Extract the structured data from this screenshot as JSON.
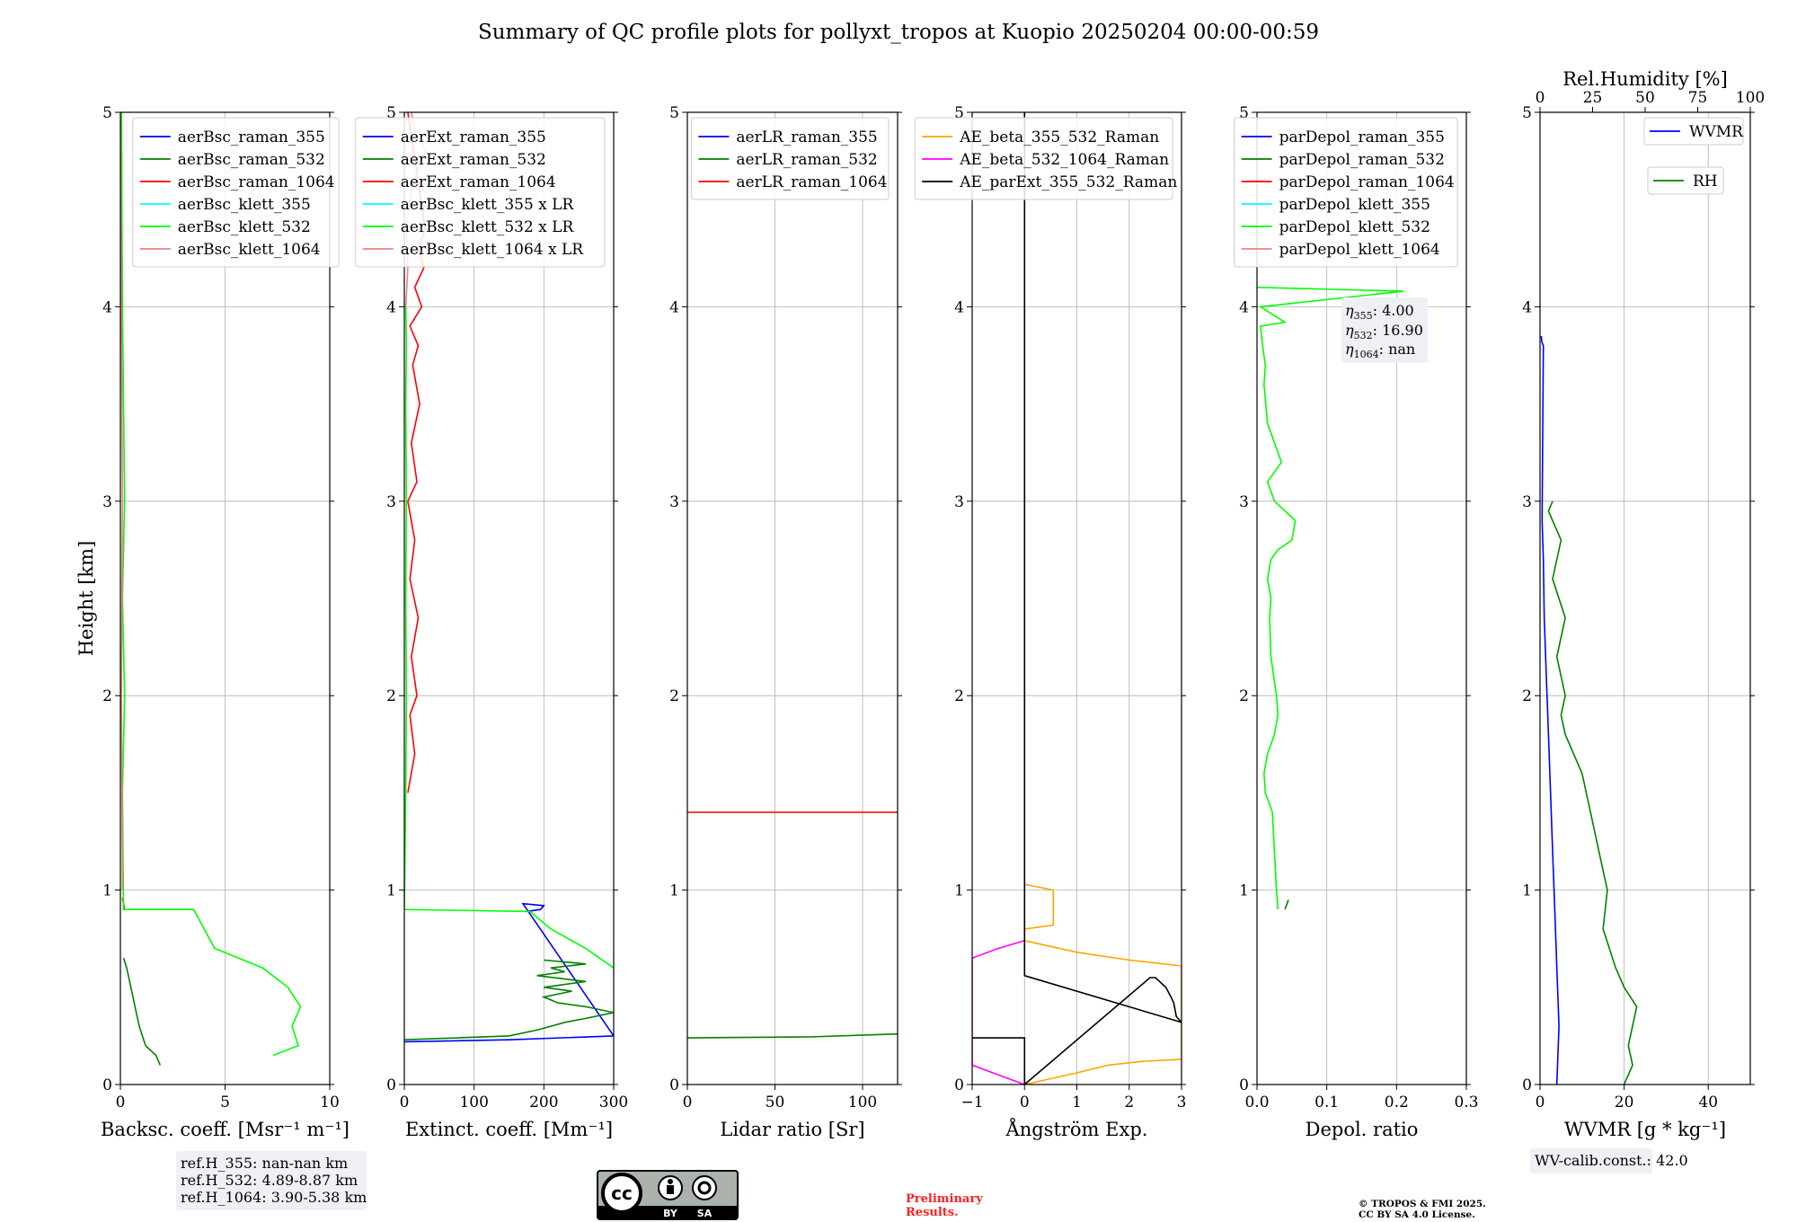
{
  "title": "Summary of QC profile plots for pollyxt_tropos at Kuopio 20250204 00:00-00:59",
  "chart_data": [
    {
      "id": "backscatter",
      "type": "line",
      "xlabel": "Backsc. coeff. [Msr⁻¹ m⁻¹]",
      "ylabel": "Height [km]",
      "xlim": [
        0,
        10
      ],
      "ylim": [
        0,
        5
      ],
      "xticks": [
        "0",
        "5",
        "10"
      ],
      "yticks": [
        "0",
        "1",
        "2",
        "3",
        "4",
        "5"
      ],
      "legend": "top-right",
      "series": [
        {
          "name": "aerBsc_raman_355",
          "color": "#0000ff",
          "x": [],
          "y": []
        },
        {
          "name": "aerBsc_raman_532",
          "color": "#008000",
          "x": [
            1.9,
            1.7,
            1.2,
            0.9,
            0.7,
            0.5,
            0.3,
            0.15
          ],
          "y": [
            0.1,
            0.15,
            0.2,
            0.3,
            0.4,
            0.5,
            0.6,
            0.65
          ]
        },
        {
          "name": "aerBsc_raman_1064",
          "color": "#ff0000",
          "x": [
            0.2,
            0.15,
            0.1
          ],
          "y": [
            0.9,
            0.93,
            0.96
          ]
        },
        {
          "name": "aerBsc_klett_355",
          "color": "#00ffff",
          "x": [],
          "y": []
        },
        {
          "name": "aerBsc_klett_532",
          "color": "#00ff00",
          "x": [
            7.3,
            8.5,
            8.2,
            8.6,
            8.0,
            6.8,
            4.5,
            3.5,
            0.15,
            0.1,
            0.2,
            0.1,
            0.2,
            0.15,
            0.1,
            0.05
          ],
          "y": [
            0.15,
            0.2,
            0.3,
            0.4,
            0.5,
            0.6,
            0.7,
            0.9,
            0.9,
            1.5,
            2.0,
            2.5,
            3.0,
            3.5,
            4.0,
            5.0
          ]
        },
        {
          "name": "aerBsc_klett_1064",
          "color": "#f08080",
          "x": [
            0.1,
            0.05,
            0.1,
            0.05,
            0.0
          ],
          "y": [
            1.0,
            2.0,
            3.0,
            4.0,
            5.0
          ]
        }
      ]
    },
    {
      "id": "extinction",
      "type": "line",
      "xlabel": "Extinct. coeff. [Mm⁻¹]",
      "xlim": [
        0,
        300
      ],
      "ylim": [
        0,
        5
      ],
      "xticks": [
        "0",
        "100",
        "200",
        "300"
      ],
      "yticks": [
        "0",
        "1",
        "2",
        "3",
        "4",
        "5"
      ],
      "legend": "top-right",
      "series": [
        {
          "name": "aerExt_raman_355",
          "color": "#0000ff",
          "x": [
            0,
            150,
            300,
            170,
            200,
            195,
            175
          ],
          "y": [
            0.22,
            0.23,
            0.25,
            0.93,
            0.92,
            0.9,
            0.89
          ]
        },
        {
          "name": "aerExt_raman_532",
          "color": "#008000",
          "x": [
            0,
            150,
            190,
            210,
            230,
            260,
            300,
            260,
            220,
            200,
            240,
            200,
            260,
            190,
            230,
            210,
            260,
            200
          ],
          "y": [
            0.23,
            0.25,
            0.28,
            0.3,
            0.32,
            0.34,
            0.37,
            0.4,
            0.42,
            0.45,
            0.48,
            0.5,
            0.53,
            0.56,
            0.58,
            0.6,
            0.62,
            0.64
          ]
        },
        {
          "name": "aerExt_raman_1064",
          "color": "#ff0000",
          "x": [
            5,
            15,
            8,
            18,
            10,
            20,
            8,
            15,
            5,
            18,
            10,
            22,
            12,
            20,
            8,
            25,
            15,
            28,
            20,
            30,
            5
          ],
          "y": [
            1.5,
            1.7,
            1.9,
            2.0,
            2.2,
            2.4,
            2.6,
            2.8,
            3.0,
            3.1,
            3.3,
            3.5,
            3.7,
            3.8,
            3.9,
            4.0,
            4.1,
            4.2,
            4.3,
            4.4,
            5.0
          ]
        },
        {
          "name": "aerBsc_klett_355 x LR",
          "color": "#00ffff",
          "x": [],
          "y": []
        },
        {
          "name": "aerBsc_klett_532 x LR",
          "color": "#00ff00",
          "x": [
            300,
            260,
            210,
            180,
            0,
            2,
            3,
            2,
            3,
            2,
            3,
            2
          ],
          "y": [
            0.6,
            0.7,
            0.8,
            0.89,
            0.9,
            1.5,
            2.0,
            2.5,
            3.0,
            3.5,
            3.8,
            4.0
          ]
        },
        {
          "name": "aerBsc_klett_1064 x LR",
          "color": "#f08080",
          "x": [
            2,
            5,
            3,
            6,
            10,
            20,
            30,
            25,
            15,
            10
          ],
          "y": [
            4.0,
            4.2,
            4.4,
            4.5,
            4.6,
            4.7,
            4.8,
            4.85,
            4.9,
            5.0
          ]
        }
      ]
    },
    {
      "id": "lidar_ratio",
      "type": "line",
      "xlabel": "Lidar ratio [Sr]",
      "xlim": [
        0,
        120
      ],
      "ylim": [
        0,
        5
      ],
      "xticks": [
        "0",
        "50",
        "100"
      ],
      "yticks": [
        "0",
        "1",
        "2",
        "3",
        "4",
        "5"
      ],
      "legend": "top-right",
      "series": [
        {
          "name": "aerLR_raman_355",
          "color": "#0000ff",
          "x": [],
          "y": []
        },
        {
          "name": "aerLR_raman_532",
          "color": "#008000",
          "x": [
            0,
            70,
            120
          ],
          "y": [
            0.24,
            0.245,
            0.26
          ]
        },
        {
          "name": "aerLR_raman_1064",
          "color": "#ff0000",
          "x": [
            0,
            120
          ],
          "y": [
            1.4,
            1.4
          ]
        }
      ]
    },
    {
      "id": "angstrom",
      "type": "line",
      "xlabel": "Ångström Exp.",
      "xlim": [
        -1,
        3
      ],
      "ylim": [
        0,
        5
      ],
      "xticks": [
        "−1",
        "0",
        "1",
        "2",
        "3"
      ],
      "yticks": [
        "0",
        "1",
        "2",
        "3",
        "4",
        "5"
      ],
      "legend": "top-right",
      "series": [
        {
          "name": "AE_beta_355_532_Raman",
          "color": "#ffa500",
          "x": [
            0,
            0.5,
            1.0,
            1.6,
            2.3,
            3.0,
            3.0,
            2.0,
            1.0,
            0.0,
            0.0,
            0.55,
            0.55,
            0.0
          ],
          "y": [
            0.0,
            0.03,
            0.06,
            0.1,
            0.12,
            0.13,
            0.61,
            0.64,
            0.68,
            0.74,
            0.8,
            0.82,
            1.0,
            1.03
          ]
        },
        {
          "name": "AE_beta_532_1064_Raman",
          "color": "#ff00ff",
          "x": [
            0,
            -0.5,
            -1.0,
            -1.0,
            -0.5,
            0.0
          ],
          "y": [
            0.0,
            0.05,
            0.1,
            0.65,
            0.7,
            0.74
          ]
        },
        {
          "name": "AE_parExt_355_532_Raman",
          "color": "#000000",
          "x": [
            -1.0,
            0.0,
            0.0,
            2.4,
            2.5,
            2.7,
            2.8,
            2.85,
            2.9,
            3.0,
            3.0,
            0.0,
            0.0
          ],
          "y": [
            0.24,
            0.24,
            0.0,
            0.55,
            0.55,
            0.5,
            0.45,
            0.42,
            0.35,
            0.32,
            0.32,
            0.56,
            5.0
          ]
        }
      ]
    },
    {
      "id": "depol",
      "type": "line",
      "xlabel": "Depol. ratio",
      "xlim": [
        0,
        0.3
      ],
      "ylim": [
        0,
        5
      ],
      "xticks": [
        "0.0",
        "0.1",
        "0.2",
        "0.3"
      ],
      "yticks": [
        "0",
        "1",
        "2",
        "3",
        "4",
        "5"
      ],
      "legend": "top-right",
      "series": [
        {
          "name": "parDepol_raman_355",
          "color": "#0000ff",
          "x": [],
          "y": []
        },
        {
          "name": "parDepol_raman_532",
          "color": "#008000",
          "x": [
            0.04,
            0.045
          ],
          "y": [
            0.9,
            0.95
          ]
        },
        {
          "name": "parDepol_raman_1064",
          "color": "#ff0000",
          "x": [],
          "y": []
        },
        {
          "name": "parDepol_klett_355",
          "color": "#00ffff",
          "x": [],
          "y": []
        },
        {
          "name": "parDepol_klett_532",
          "color": "#00ff00",
          "x": [
            0.03,
            0.028,
            0.025,
            0.022,
            0.012,
            0.01,
            0.015,
            0.025,
            0.03,
            0.028,
            0.02,
            0.018,
            0.02,
            0.015,
            0.02,
            0.03,
            0.05,
            0.055,
            0.04,
            0.025,
            0.015,
            0.035,
            0.015,
            0.01,
            0.012,
            0.008,
            0.005,
            0.04,
            0.005,
            0.21,
            0.0
          ],
          "y": [
            0.9,
            1.0,
            1.2,
            1.4,
            1.5,
            1.6,
            1.7,
            1.8,
            1.9,
            2.0,
            2.2,
            2.4,
            2.5,
            2.6,
            2.7,
            2.75,
            2.8,
            2.9,
            2.95,
            3.0,
            3.1,
            3.2,
            3.4,
            3.6,
            3.7,
            3.8,
            3.9,
            3.92,
            4.0,
            4.08,
            4.1
          ]
        },
        {
          "name": "parDepol_klett_1064",
          "color": "#f08080",
          "x": [],
          "y": []
        }
      ]
    },
    {
      "id": "wvmr",
      "type": "line",
      "xlabel": "WVMR [g * kg⁻¹]",
      "xlabel2": "Rel.Humidity [%]",
      "xlim": [
        0,
        50
      ],
      "xlim2": [
        0,
        100
      ],
      "ylim": [
        0,
        5
      ],
      "xticks": [
        "0",
        "20",
        "40"
      ],
      "xticks2": [
        "0",
        "25",
        "50",
        "75",
        "100"
      ],
      "yticks": [
        "0",
        "1",
        "2",
        "3",
        "4",
        "5"
      ],
      "legend": "top-right",
      "series": [
        {
          "name": "WVMR",
          "color": "#0000ff",
          "x": [
            4,
            4.5,
            4,
            3.5,
            3,
            2.5,
            2,
            1.5,
            1,
            0.8,
            0.5,
            0.8,
            0.4,
            0.3
          ],
          "y": [
            0.0,
            0.3,
            0.6,
            0.9,
            1.2,
            1.5,
            1.8,
            2.1,
            2.4,
            2.7,
            2.9,
            3.8,
            3.82,
            3.85
          ]
        },
        {
          "name": "RH",
          "color": "#008000",
          "x": [
            40,
            44,
            42,
            46,
            40,
            36,
            30,
            32,
            28,
            24,
            20,
            16,
            12,
            10,
            12,
            8,
            12,
            6,
            10,
            6,
            4,
            6
          ],
          "y": [
            0.0,
            0.1,
            0.2,
            0.4,
            0.5,
            0.6,
            0.8,
            1.0,
            1.2,
            1.4,
            1.6,
            1.7,
            1.8,
            1.9,
            2.0,
            2.2,
            2.4,
            2.6,
            2.8,
            2.9,
            2.95,
            3.0
          ]
        }
      ]
    }
  ],
  "annotations": {
    "refh": [
      "ref.H_355: nan-nan km",
      "ref.H_532: 4.89-8.87 km",
      "ref.H_1064: 3.90-5.38 km"
    ],
    "eta": [
      "4.00",
      "16.90",
      "nan"
    ],
    "wv_calib": "WV-calib.const.: 42.0",
    "preliminary": [
      "Preliminary",
      "Results."
    ],
    "copyright": [
      "© TROPOS & FMI 2025.",
      "CC BY SA 4.0 License."
    ],
    "cc_badge": [
      "cc",
      "BY",
      "SA"
    ]
  }
}
